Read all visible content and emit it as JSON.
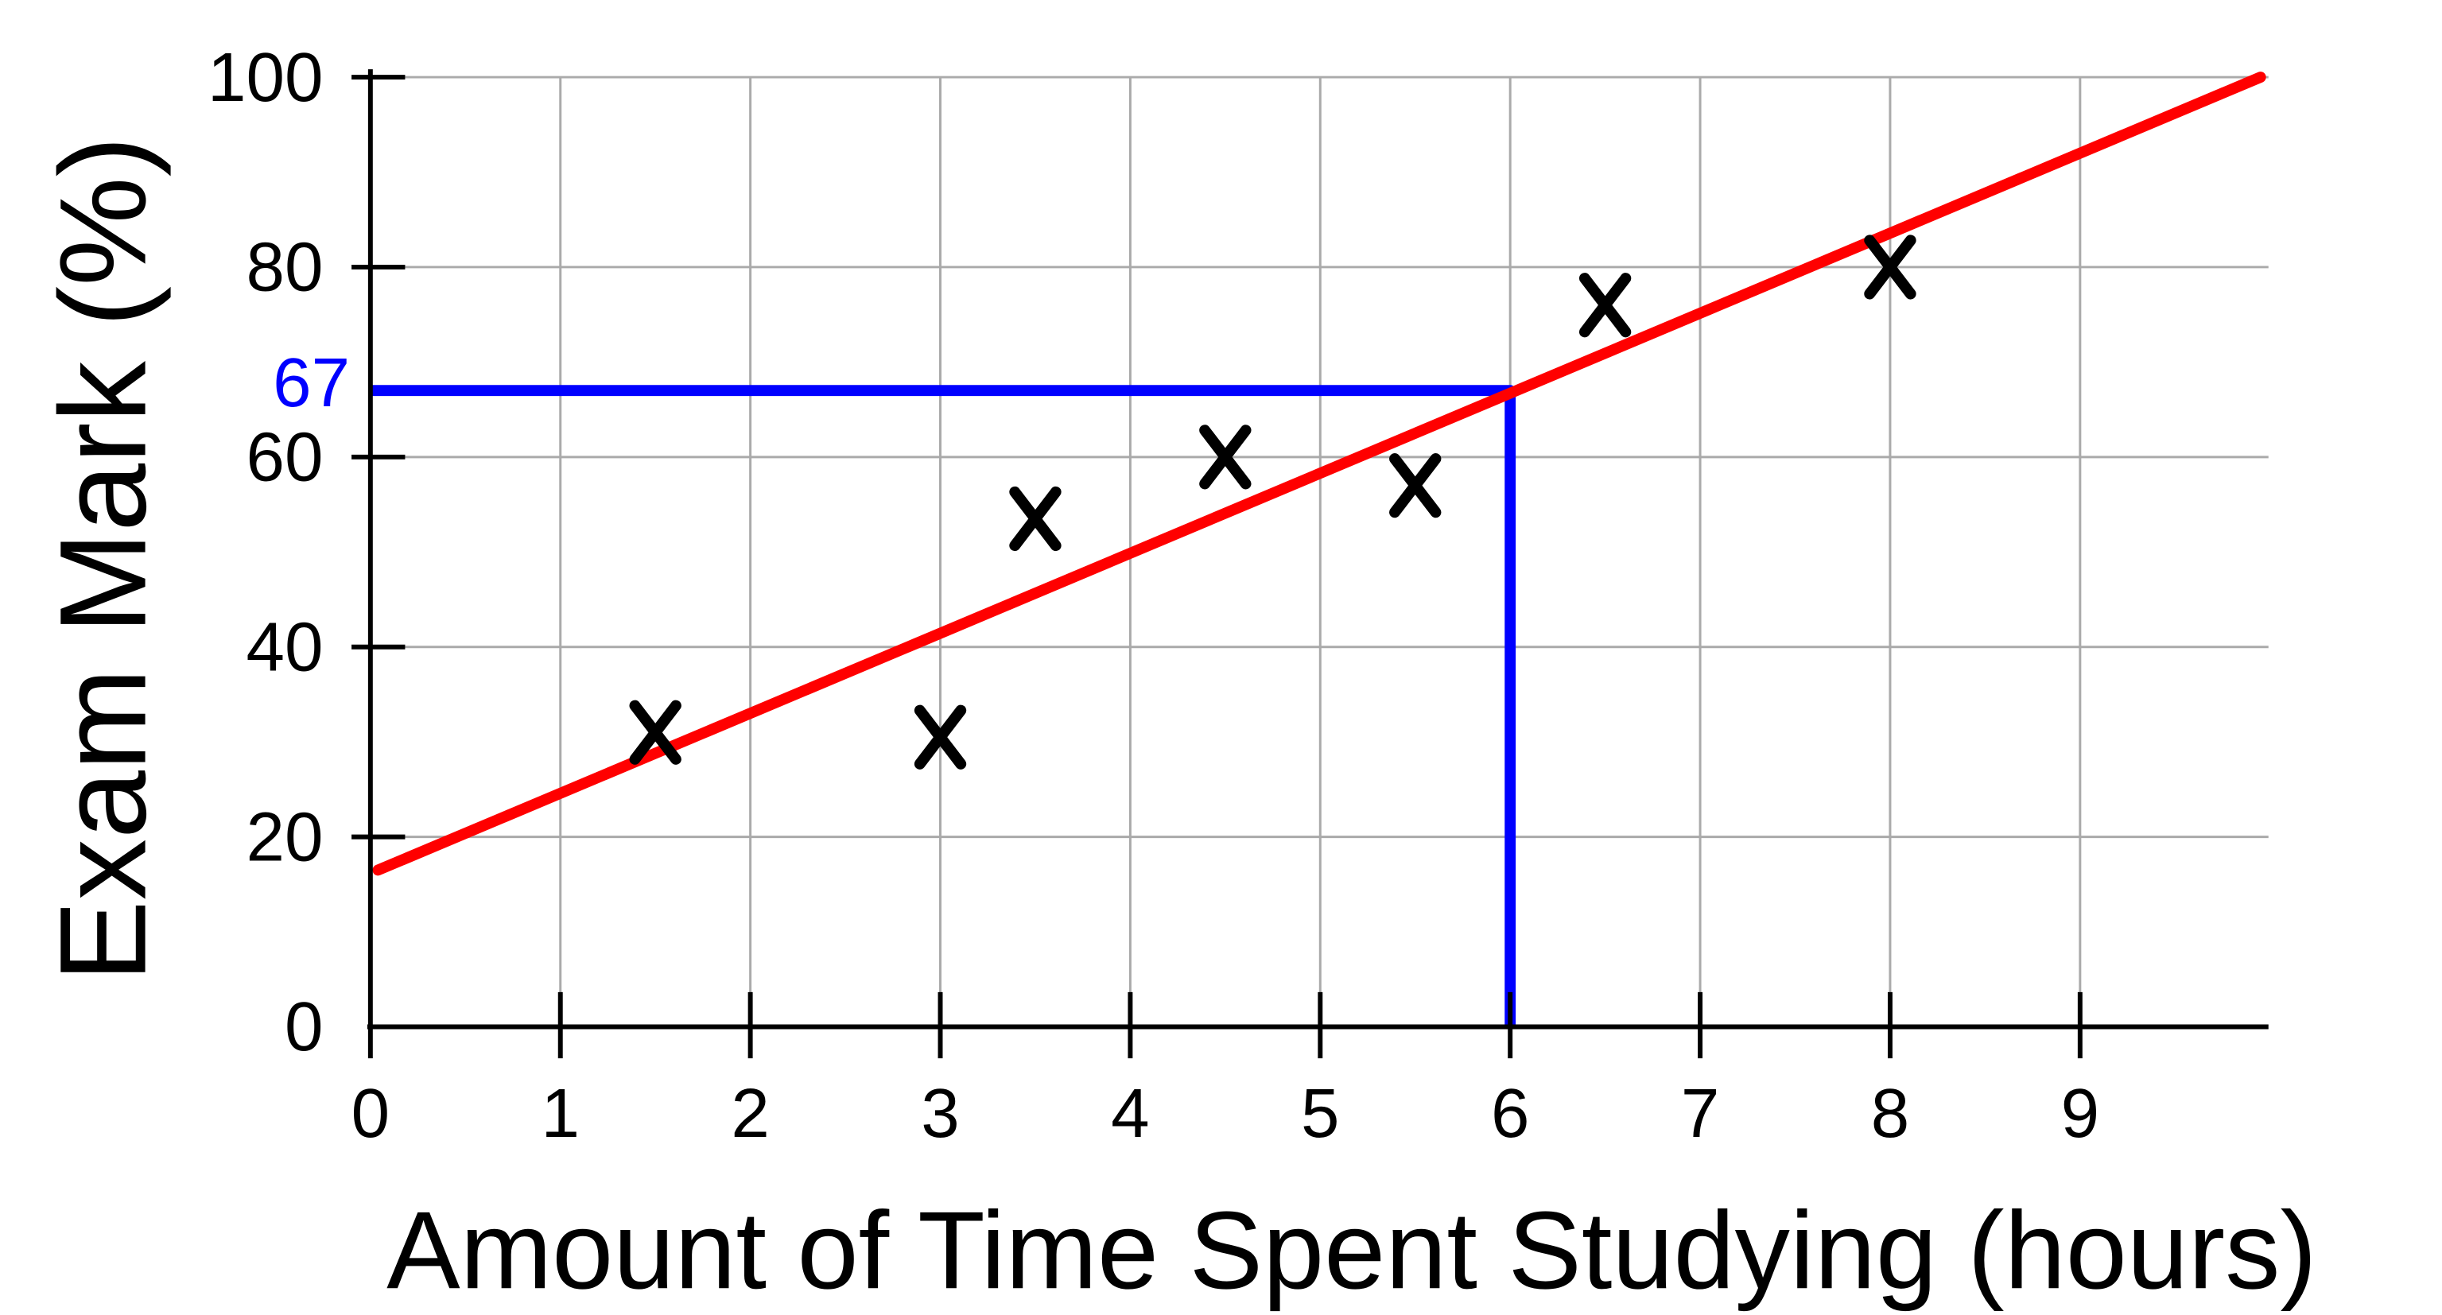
{
  "chart_data": {
    "type": "scatter",
    "title": "",
    "xlabel": "Amount of Time Spent Studying (hours)",
    "ylabel": "Exam Mark (%)",
    "xlim": [
      0,
      10
    ],
    "ylim": [
      0,
      100
    ],
    "x_ticks": [
      "0",
      "1",
      "2",
      "3",
      "4",
      "5",
      "6",
      "7",
      "8",
      "9"
    ],
    "y_ticks": [
      "0",
      "20",
      "40",
      "60",
      "80",
      "100"
    ],
    "grid": true,
    "points": [
      {
        "x": 1.5,
        "y": 31
      },
      {
        "x": 3,
        "y": 30.5
      },
      {
        "x": 3.5,
        "y": 53.5
      },
      {
        "x": 4.5,
        "y": 60
      },
      {
        "x": 5.5,
        "y": 57
      },
      {
        "x": 6.5,
        "y": 76
      },
      {
        "x": 8,
        "y": 80
      }
    ],
    "best_fit_line": {
      "from": [
        0.04,
        16.5
      ],
      "to": [
        9.95,
        100
      ],
      "color": "#ff0000"
    },
    "reading": {
      "x": 6,
      "y": 67,
      "label": "67",
      "color": "#0000ff"
    },
    "marker": "x",
    "marker_color": "#000000"
  }
}
